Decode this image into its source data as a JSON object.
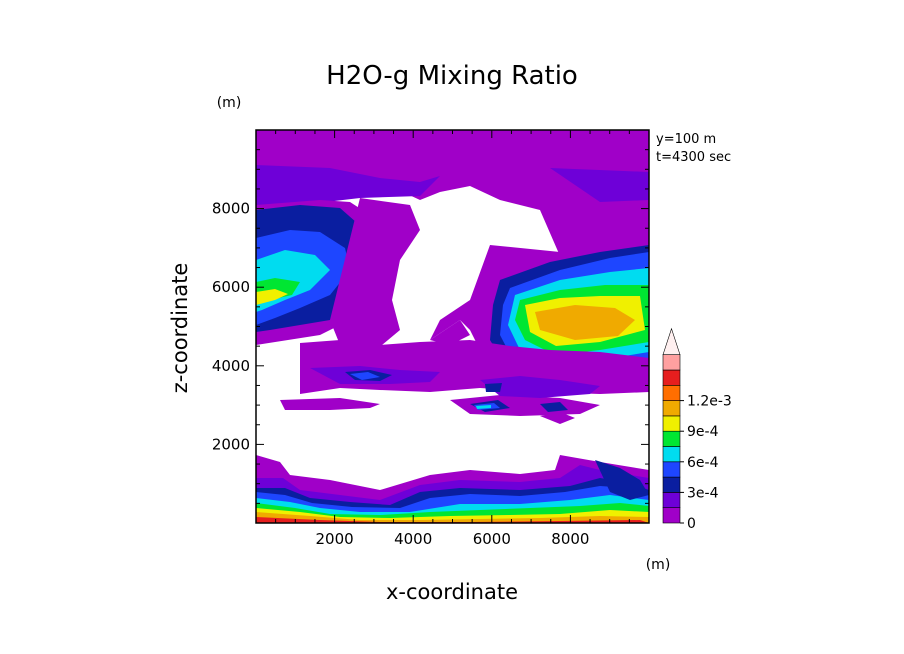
{
  "chart_data": {
    "type": "heatmap",
    "title": "H2O-g Mixing Ratio",
    "xlabel": "x-coordinate",
    "ylabel": "z-coordinate",
    "x_unit": "(m)",
    "y_unit": "(m)",
    "annotations": [
      "y=100 m",
      "t=4300 sec"
    ],
    "xlim": [
      0,
      10000
    ],
    "ylim": [
      0,
      10000
    ],
    "x_ticks": [
      2000,
      4000,
      6000,
      8000
    ],
    "y_ticks": [
      2000,
      4000,
      6000,
      8000
    ],
    "x_tick_labels": [
      "2000",
      "4000",
      "6000",
      "8000"
    ],
    "y_tick_labels": [
      "2000",
      "4000",
      "6000",
      "8000"
    ],
    "colorbar": {
      "levels": [
        0,
        0.00015,
        0.0003,
        0.00045,
        0.0006,
        0.00075,
        0.0009,
        0.00105,
        0.0012
      ],
      "labels": [
        "0",
        "3e-4",
        "6e-4",
        "9e-4",
        "1.2e-3"
      ],
      "colors": [
        "#a000c8",
        "#6e00d8",
        "#0a1ea0",
        "#1e46ff",
        "#00dcf0",
        "#00e632",
        "#f0f000",
        "#f0aa00",
        "#ff6e00",
        "#e61e1e",
        "#ffa0a0",
        "#fff0f0"
      ],
      "extend": "max"
    },
    "field_description": "Contoured water vapor mixing ratio on x-z slice; white regions below lowest contour",
    "contour_regions": [
      {
        "level": 0,
        "desc": "upper layer above 8000"
      },
      {
        "level": 0.0003,
        "desc": "left moist layer 4800-7000"
      },
      {
        "level": 0.0009,
        "desc": "right moist core near x=7500 z=5000"
      },
      {
        "level": 0.0012,
        "desc": "surface layer below 500"
      }
    ]
  }
}
